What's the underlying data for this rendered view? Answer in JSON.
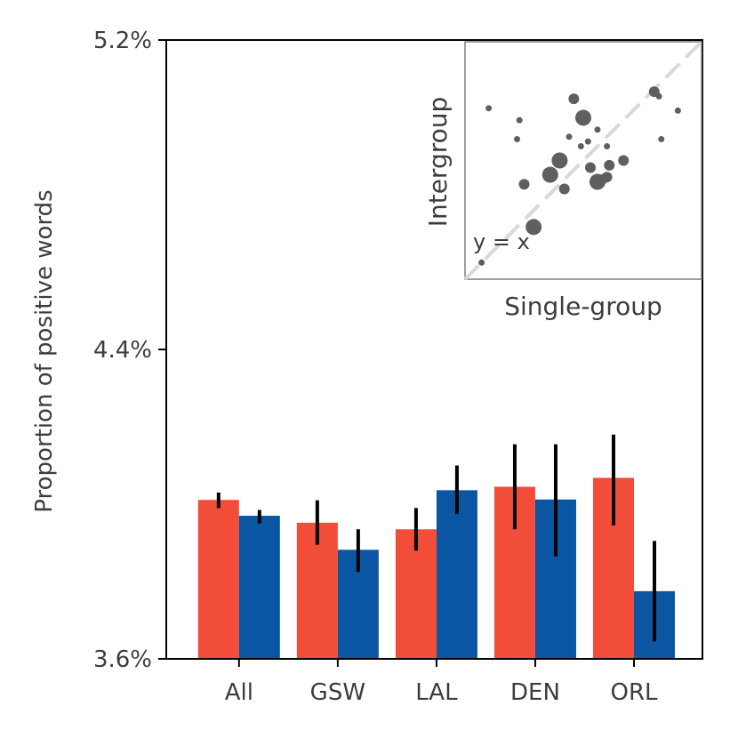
{
  "chart_data": {
    "type": "bar",
    "title": "",
    "xlabel": "",
    "ylabel": "Proportion of positive words",
    "categories": [
      "All",
      "GSW",
      "LAL",
      "DEN",
      "ORL"
    ],
    "ylim": [
      3.6,
      5.2
    ],
    "yticks": [
      {
        "value": 3.6,
        "label": "3.6%"
      },
      {
        "value": 4.4,
        "label": "4.4%"
      },
      {
        "value": 5.2,
        "label": "5.2%"
      }
    ],
    "grid": false,
    "series": [
      {
        "color": "#f14d39",
        "values": [
          4.011,
          3.952,
          3.935,
          4.045,
          4.068
        ],
        "error_low": [
          3.99,
          3.895,
          3.88,
          3.935,
          3.945
        ],
        "error_high": [
          4.03,
          4.01,
          3.99,
          4.155,
          4.18
        ]
      },
      {
        "color": "#0b56a2",
        "values": [
          3.97,
          3.882,
          4.036,
          4.012,
          3.775
        ],
        "error_low": [
          3.95,
          3.825,
          3.975,
          3.865,
          3.645
        ],
        "error_high": [
          3.985,
          3.935,
          4.1,
          4.155,
          3.905
        ]
      }
    ],
    "inset": {
      "type": "scatter",
      "xlabel": "Single-group",
      "ylabel": "Intergroup",
      "annotation": "y = x",
      "reference_line": "y = x",
      "point_color": "#5f5f5f",
      "line_color": "#d9d9d9",
      "xlim": [
        0,
        1
      ],
      "ylim": [
        0,
        1
      ],
      "points": [
        {
          "x": 0.07,
          "y": 0.07,
          "size": 1
        },
        {
          "x": 0.1,
          "y": 0.72,
          "size": 1
        },
        {
          "x": 0.23,
          "y": 0.67,
          "size": 1
        },
        {
          "x": 0.22,
          "y": 0.59,
          "size": 1
        },
        {
          "x": 0.25,
          "y": 0.4,
          "size": 2
        },
        {
          "x": 0.29,
          "y": 0.22,
          "size": 3
        },
        {
          "x": 0.36,
          "y": 0.44,
          "size": 3
        },
        {
          "x": 0.4,
          "y": 0.5,
          "size": 3
        },
        {
          "x": 0.42,
          "y": 0.38,
          "size": 2
        },
        {
          "x": 0.44,
          "y": 0.6,
          "size": 1
        },
        {
          "x": 0.46,
          "y": 0.76,
          "size": 2
        },
        {
          "x": 0.49,
          "y": 0.56,
          "size": 1
        },
        {
          "x": 0.5,
          "y": 0.68,
          "size": 3
        },
        {
          "x": 0.52,
          "y": 0.58,
          "size": 1
        },
        {
          "x": 0.53,
          "y": 0.47,
          "size": 2
        },
        {
          "x": 0.56,
          "y": 0.63,
          "size": 1
        },
        {
          "x": 0.56,
          "y": 0.41,
          "size": 3
        },
        {
          "x": 0.58,
          "y": 0.42,
          "size": 2
        },
        {
          "x": 0.6,
          "y": 0.43,
          "size": 2
        },
        {
          "x": 0.61,
          "y": 0.48,
          "size": 2
        },
        {
          "x": 0.6,
          "y": 0.56,
          "size": 1
        },
        {
          "x": 0.67,
          "y": 0.5,
          "size": 2
        },
        {
          "x": 0.8,
          "y": 0.79,
          "size": 2
        },
        {
          "x": 0.83,
          "y": 0.59,
          "size": 1
        },
        {
          "x": 0.9,
          "y": 0.71,
          "size": 1
        },
        {
          "x": 0.82,
          "y": 0.77,
          "size": 1
        }
      ]
    }
  }
}
